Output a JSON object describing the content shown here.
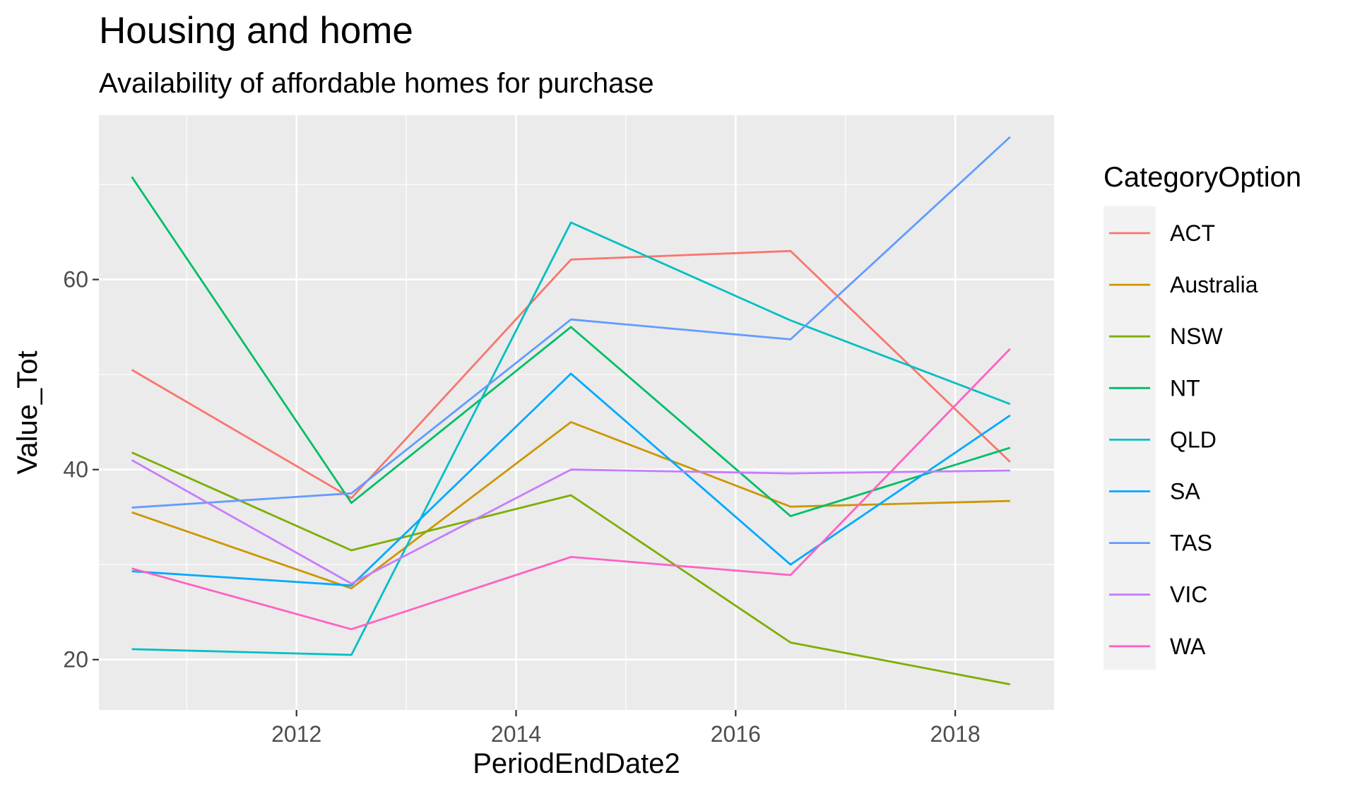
{
  "chart_data": {
    "type": "line",
    "title": "Housing and home",
    "subtitle": "Availability of affordable homes for purchase",
    "xlabel": "PeriodEndDate2",
    "ylabel": "Value_Tot",
    "x": [
      2010.5,
      2012.5,
      2014.5,
      2016.5,
      2018.5
    ],
    "xlim": [
      2010.2,
      2018.9
    ],
    "ylim": [
      14.7,
      77.3
    ],
    "xticks": [
      2012,
      2014,
      2016,
      2018
    ],
    "xtick_labels": [
      "2012",
      "2014",
      "2016",
      "2018"
    ],
    "yticks": [
      20,
      40,
      60
    ],
    "ytick_labels": [
      "20",
      "40",
      "60"
    ],
    "grid": true,
    "legend": {
      "title": "CategoryOption",
      "position": "right"
    },
    "series": [
      {
        "name": "ACT",
        "color": "#F8766D",
        "values": [
          50.5,
          37.0,
          62.1,
          63.0,
          40.8
        ]
      },
      {
        "name": "Australia",
        "color": "#CD9600",
        "values": [
          35.5,
          27.5,
          45.0,
          36.1,
          36.7
        ]
      },
      {
        "name": "NSW",
        "color": "#7CAE00",
        "values": [
          41.8,
          31.5,
          37.3,
          21.8,
          17.4
        ]
      },
      {
        "name": "NT",
        "color": "#00BE67",
        "values": [
          70.8,
          36.5,
          55.0,
          35.1,
          42.3
        ]
      },
      {
        "name": "QLD",
        "color": "#00BFC4",
        "values": [
          21.1,
          20.5,
          66.0,
          55.7,
          46.9
        ]
      },
      {
        "name": "SA",
        "color": "#00A9FF",
        "values": [
          29.3,
          27.8,
          50.1,
          30.0,
          45.7
        ]
      },
      {
        "name": "TAS",
        "color": "#619CFF",
        "values": [
          36.0,
          37.5,
          55.8,
          53.7,
          75.0
        ]
      },
      {
        "name": "VIC",
        "color": "#C77CFF",
        "values": [
          41.0,
          28.0,
          40.0,
          39.6,
          39.9
        ]
      },
      {
        "name": "WA",
        "color": "#FF61C3",
        "values": [
          29.6,
          23.2,
          30.8,
          28.9,
          52.7
        ]
      }
    ]
  }
}
